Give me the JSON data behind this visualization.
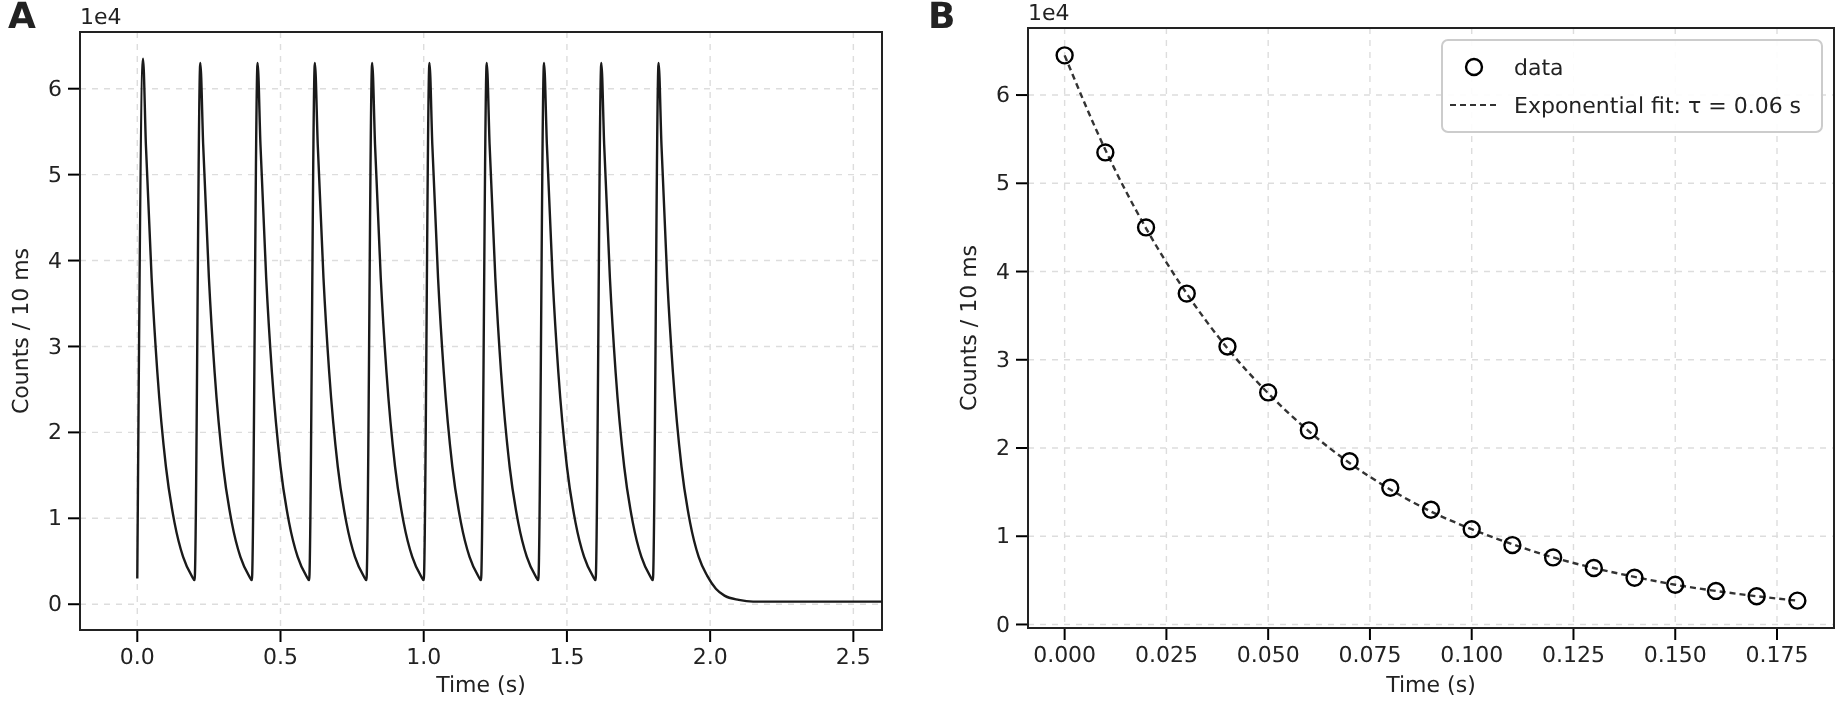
{
  "chart_data": [
    {
      "type": "line",
      "title": "A",
      "xlabel": "Time (s)",
      "ylabel": "Counts / 10 ms",
      "annotations": [
        "1e4"
      ],
      "grid": true,
      "xlim": [
        -0.2,
        2.6
      ],
      "xticks": [
        {
          "value": 0,
          "label": "0.0"
        },
        0.5,
        {
          "value": 1,
          "label": "1.0"
        },
        1.5,
        {
          "value": 2,
          "label": "2.0"
        },
        2.5
      ],
      "ylim": [
        -0.3,
        6.66
      ],
      "yticks": [
        0,
        1,
        2,
        3,
        4,
        5,
        6
      ],
      "x": [
        0,
        0.02,
        0.03,
        0.05,
        0.07,
        0.1,
        0.13,
        0.16,
        0.19,
        0.2,
        0.22,
        0.23,
        0.25,
        0.27,
        0.3,
        0.33,
        0.36,
        0.39,
        0.4,
        0.42,
        0.43,
        0.45,
        0.47,
        0.5,
        0.53,
        0.56,
        0.59,
        0.6,
        0.62,
        0.63,
        0.65,
        0.67,
        0.7,
        0.73,
        0.76,
        0.79,
        0.8,
        0.82,
        0.83,
        0.85,
        0.87,
        0.9,
        0.93,
        0.96,
        0.99,
        1.0,
        1.02,
        1.03,
        1.05,
        1.07,
        1.1,
        1.13,
        1.16,
        1.19,
        1.2,
        1.22,
        1.23,
        1.25,
        1.27,
        1.3,
        1.33,
        1.36,
        1.39,
        1.4,
        1.42,
        1.43,
        1.45,
        1.47,
        1.5,
        1.53,
        1.56,
        1.59,
        1.6,
        1.62,
        1.63,
        1.65,
        1.67,
        1.7,
        1.73,
        1.76,
        1.79,
        1.8,
        1.82,
        1.83,
        1.85,
        1.87,
        1.9,
        1.93,
        1.96,
        1.99,
        2.02,
        2.05,
        2.1,
        2.15,
        2.2,
        2.4,
        2.6
      ],
      "series": [
        {
          "color": "#1a1a1a",
          "values": [
            0.3,
            6.35,
            5.35,
            3.8,
            2.7,
            1.6,
            0.95,
            0.55,
            0.33,
            0.28,
            6.3,
            5.35,
            3.8,
            2.7,
            1.6,
            0.95,
            0.55,
            0.33,
            0.28,
            6.3,
            5.35,
            3.8,
            2.7,
            1.6,
            0.95,
            0.55,
            0.33,
            0.28,
            6.3,
            5.35,
            3.8,
            2.7,
            1.6,
            0.95,
            0.55,
            0.33,
            0.28,
            6.3,
            5.35,
            3.8,
            2.7,
            1.6,
            0.95,
            0.55,
            0.33,
            0.28,
            6.3,
            5.35,
            3.8,
            2.7,
            1.6,
            0.95,
            0.55,
            0.33,
            0.28,
            6.3,
            5.35,
            3.8,
            2.7,
            1.6,
            0.95,
            0.55,
            0.33,
            0.28,
            6.3,
            5.35,
            3.8,
            2.7,
            1.6,
            0.95,
            0.55,
            0.33,
            0.28,
            6.3,
            5.35,
            3.8,
            2.7,
            1.6,
            0.95,
            0.55,
            0.33,
            0.28,
            6.3,
            5.35,
            3.8,
            2.7,
            1.6,
            0.95,
            0.55,
            0.33,
            0.18,
            0.1,
            0.05,
            0.03,
            0.03,
            0.03,
            0.03
          ]
        }
      ]
    },
    {
      "type": "scatter",
      "title": "B",
      "xlabel": "Time (s)",
      "ylabel": "Counts / 10 ms",
      "annotations": [
        "1e4"
      ],
      "grid": true,
      "legend": "top right",
      "xlim": [
        -0.009,
        0.189
      ],
      "xticks": [
        {
          "value": 0,
          "label": "0.000"
        },
        0.025,
        {
          "value": 0.05,
          "label": "0.050"
        },
        0.075,
        {
          "value": 0.1,
          "label": "0.100"
        },
        0.125,
        {
          "value": 0.15,
          "label": "0.150"
        },
        0.175
      ],
      "ylim": [
        -0.04,
        6.76
      ],
      "yticks": [
        0,
        1,
        2,
        3,
        4,
        5,
        6
      ],
      "x": [
        0,
        0.01,
        0.02,
        0.03,
        0.04,
        0.05,
        0.06,
        0.07,
        0.08,
        0.09,
        0.1,
        0.11,
        0.12,
        0.13,
        0.14,
        0.15,
        0.16,
        0.17,
        0.18
      ],
      "series": [
        {
          "name": "data",
          "color": "#000000",
          "marker": "circle",
          "values": [
            6.45,
            5.35,
            4.5,
            3.75,
            3.15,
            2.63,
            2.2,
            1.85,
            1.55,
            1.3,
            1.08,
            0.9,
            0.76,
            0.64,
            0.53,
            0.45,
            0.38,
            0.32,
            0.27
          ]
        },
        {
          "name": "Exponential fit: τ = 0.06 s",
          "type": "line",
          "line_style": "dashed",
          "color": "#333333",
          "values": [
            6.45,
            5.38,
            4.49,
            3.75,
            3.13,
            2.62,
            2.19,
            1.83,
            1.53,
            1.28,
            1.08,
            0.91,
            0.76,
            0.64,
            0.54,
            0.45,
            0.38,
            0.32,
            0.27
          ]
        }
      ]
    }
  ]
}
